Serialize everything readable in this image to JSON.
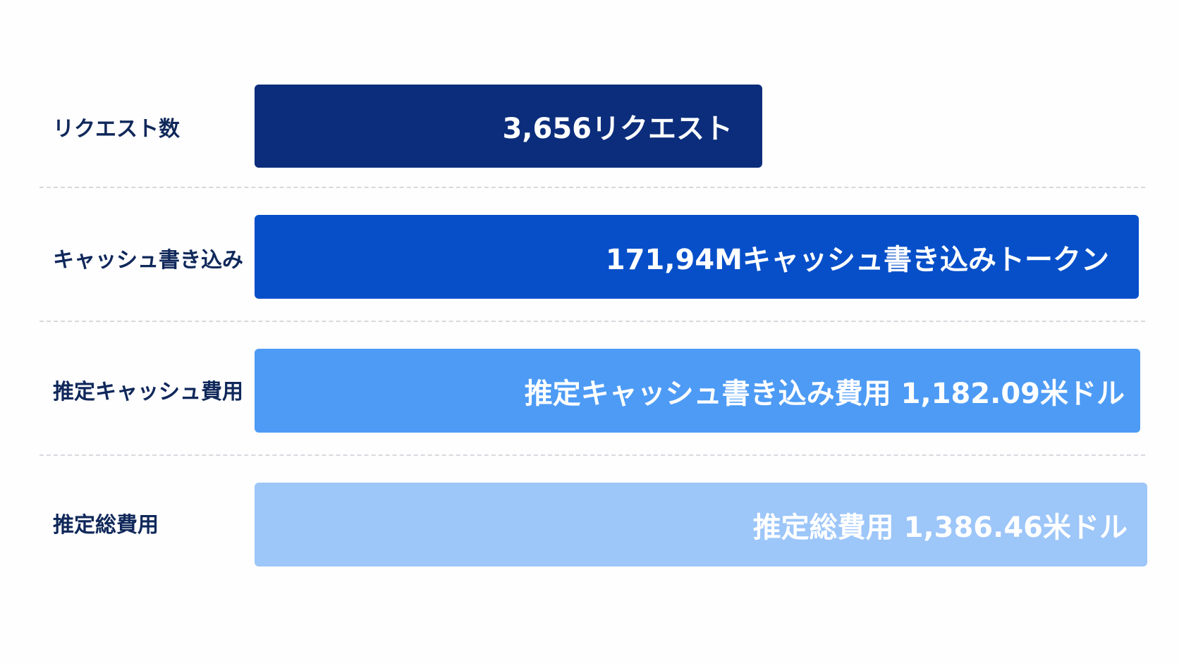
{
  "rows": [
    {
      "label": "リクエスト数",
      "bar_text": "3,656リクエスト"
    },
    {
      "label": "キャッシュ書き込み",
      "bar_text": "171,94Mキャッシュ書き込みトークン"
    },
    {
      "label": "推定キャッシュ費用",
      "bar_text": "推定キャッシュ書き込み費用 1,182.09米ドル"
    },
    {
      "label": "推定総費用",
      "bar_text": "推定総費用 1,386.46米ドル"
    }
  ]
}
